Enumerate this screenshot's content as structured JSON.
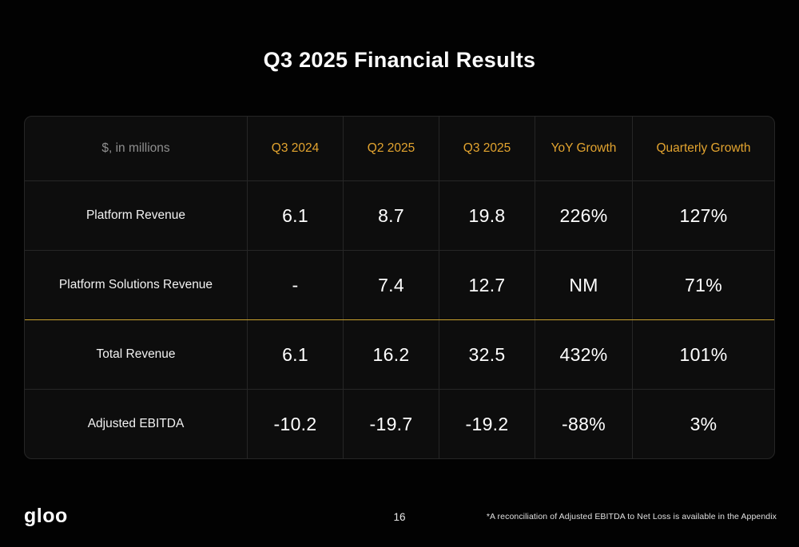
{
  "slide": {
    "title": "Q3 2025 Financial Results",
    "page_number": "16",
    "logo_text": "gloo",
    "footnote": "*A reconciliation of Adjusted EBITDA to Net Loss is available in the Appendix"
  },
  "table": {
    "corner_label": "$, in millions",
    "columns": [
      "Q3 2024",
      "Q2 2025",
      "Q3 2025",
      "YoY Growth",
      "Quarterly Growth"
    ],
    "rows": [
      {
        "label": "Platform Revenue",
        "values": [
          "6.1",
          "8.7",
          "19.8",
          "226%",
          "127%"
        ]
      },
      {
        "label": "Platform Solutions Revenue",
        "values": [
          "-",
          "7.4",
          "12.7",
          "NM",
          "71%"
        ]
      },
      {
        "label": "Total Revenue",
        "values": [
          "6.1",
          "16.2",
          "32.5",
          "432%",
          "101%"
        ],
        "highlight_top_border": true
      },
      {
        "label": "Adjusted EBITDA",
        "values": [
          "-10.2",
          "-19.7",
          "-19.2",
          "-88%",
          "3%"
        ]
      }
    ]
  },
  "colors": {
    "background": "#020202",
    "table_background": "#0d0d0d",
    "divider": "#262626",
    "accent_gold": "#e3a42f",
    "gold_divider": "#c9a22e",
    "muted_text": "#8f8f8f"
  }
}
